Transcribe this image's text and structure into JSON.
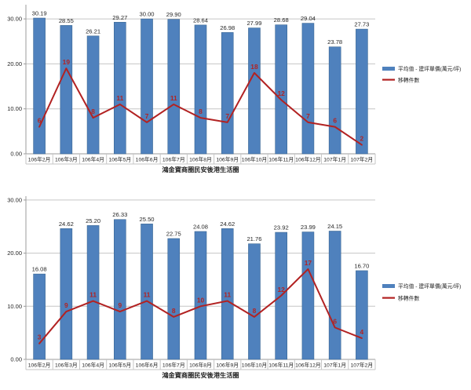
{
  "page": {
    "background": "#ffffff"
  },
  "chart_data": [
    {
      "type": "bar",
      "subtype": "combo-bar-line",
      "title": "",
      "xlabel": "鴻金寶商圈民安後港生活圈",
      "ylabel": "",
      "categories": [
        "106年2月",
        "106年3月",
        "106年4月",
        "106年5月",
        "106年6月",
        "106年7月",
        "106年8月",
        "106年9月",
        "106年10月",
        "106年11月",
        "106年12月",
        "107年1月",
        "107年2月"
      ],
      "series": [
        {
          "name": "平均值 - 建坪單價(萬元/坪)",
          "chart_type": "bar",
          "color": "#4F81BD",
          "border_color": "#3A6793",
          "label_color": "#262626",
          "value_format": "0.00",
          "values": [
            30.19,
            28.55,
            26.21,
            29.27,
            30.0,
            29.9,
            28.64,
            26.98,
            27.99,
            28.68,
            29.04,
            23.78,
            27.73
          ]
        },
        {
          "name": "移轉件數",
          "chart_type": "line",
          "color": "#B22222",
          "label_color": "#B22222",
          "value_format": "0",
          "values": [
            6,
            19,
            8,
            11,
            7,
            11,
            8,
            7,
            18,
            12,
            7,
            6,
            2
          ]
        }
      ],
      "ylim": [
        0,
        30
      ],
      "ytick_values": [
        0,
        10,
        20,
        30
      ],
      "ytick_labels": [
        "0.00",
        "10.00",
        "20.00",
        "30.00"
      ],
      "grid": true,
      "legend_position": "right"
    },
    {
      "type": "bar",
      "subtype": "combo-bar-line",
      "title": "",
      "xlabel": "鴻金寶商圈民安後港生活圈",
      "ylabel": "",
      "categories": [
        "106年2月",
        "106年3月",
        "106年4月",
        "106年5月",
        "106年6月",
        "106年7月",
        "106年8月",
        "106年9月",
        "106年10月",
        "106年11月",
        "106年12月",
        "107年1月",
        "107年2月"
      ],
      "series": [
        {
          "name": "平均值 - 建坪單價(萬元/坪)",
          "chart_type": "bar",
          "color": "#4F81BD",
          "border_color": "#3A6793",
          "label_color": "#262626",
          "value_format": "0.00",
          "values": [
            16.08,
            24.62,
            25.2,
            26.33,
            25.5,
            22.75,
            24.08,
            24.62,
            21.76,
            23.92,
            23.99,
            24.15,
            16.7
          ]
        },
        {
          "name": "移轉件數",
          "chart_type": "line",
          "color": "#B22222",
          "label_color": "#B22222",
          "value_format": "0",
          "values": [
            3,
            9,
            11,
            9,
            11,
            8,
            10,
            11,
            8,
            12,
            17,
            6,
            4
          ]
        }
      ],
      "ylim": [
        0,
        30
      ],
      "ytick_values": [
        0,
        10,
        20,
        30
      ],
      "ytick_labels": [
        "0.00",
        "10.00",
        "20.00",
        "30.00"
      ],
      "grid": true,
      "legend_position": "right"
    }
  ],
  "colors": {
    "bar_fill": "#4F81BD",
    "line_stroke": "#B22222",
    "gridline": "#C6C6C6",
    "axis_line": "#9B9B9B",
    "text": "#262626"
  }
}
